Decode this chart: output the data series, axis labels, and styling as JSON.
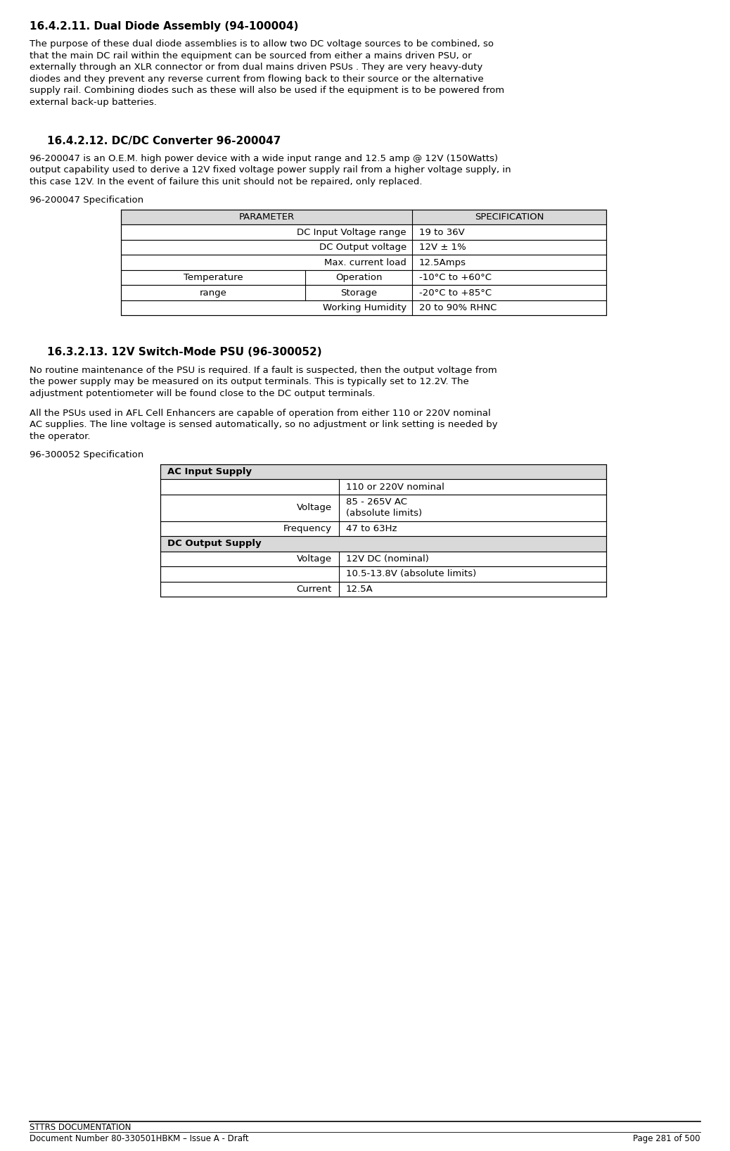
{
  "title1": "16.4.2.11. Dual Diode Assembly (94-100004)",
  "title2": "16.4.2.12. DC/DC Converter 96-200047",
  "title3": "16.3.2.13. 12V Switch-Mode PSU (96-300052)",
  "para1_lines": [
    "The purpose of these dual diode assemblies is to allow two DC voltage sources to be combined, so",
    "that the main DC rail within the equipment can be sourced from either a mains driven PSU, or",
    "externally through an XLR connector or from dual mains driven PSUs . They are very heavy-duty",
    "diodes and they prevent any reverse current from flowing back to their source or the alternative",
    "supply rail. Combining diodes such as these will also be used if the equipment is to be powered from",
    "external back-up batteries."
  ],
  "para2_lines": [
    "96-200047 is an O.E.M. high power device with a wide input range and 12.5 amp @ 12V (150Watts)",
    "output capability used to derive a 12V fixed voltage power supply rail from a higher voltage supply, in",
    "this case 12V. In the event of failure this unit should not be repaired, only replaced."
  ],
  "spec1_label": "96-200047 Specification",
  "spec2_label": "96-300052 Specification",
  "para3a_lines": [
    "No routine maintenance of the PSU is required. If a fault is suspected, then the output voltage from",
    "the power supply may be measured on its output terminals. This is typically set to 12.2V. The",
    "adjustment potentiometer will be found close to the DC output terminals."
  ],
  "para3b_lines": [
    "All the PSUs used in AFL Cell Enhancers are capable of operation from either 110 or 220V nominal",
    "AC supplies. The line voltage is sensed automatically, so no adjustment or link setting is needed by",
    "the operator."
  ],
  "footer_line1": "STTRS DOCUMENTATION",
  "footer_line2_left": "Document Number 80-330501HBKM – Issue A - Draft",
  "footer_line2_right": "Page 281 of 500",
  "bg_color": "#ffffff",
  "text_color": "#000000",
  "header_bg": "#d9d9d9",
  "table_border": "#000000"
}
